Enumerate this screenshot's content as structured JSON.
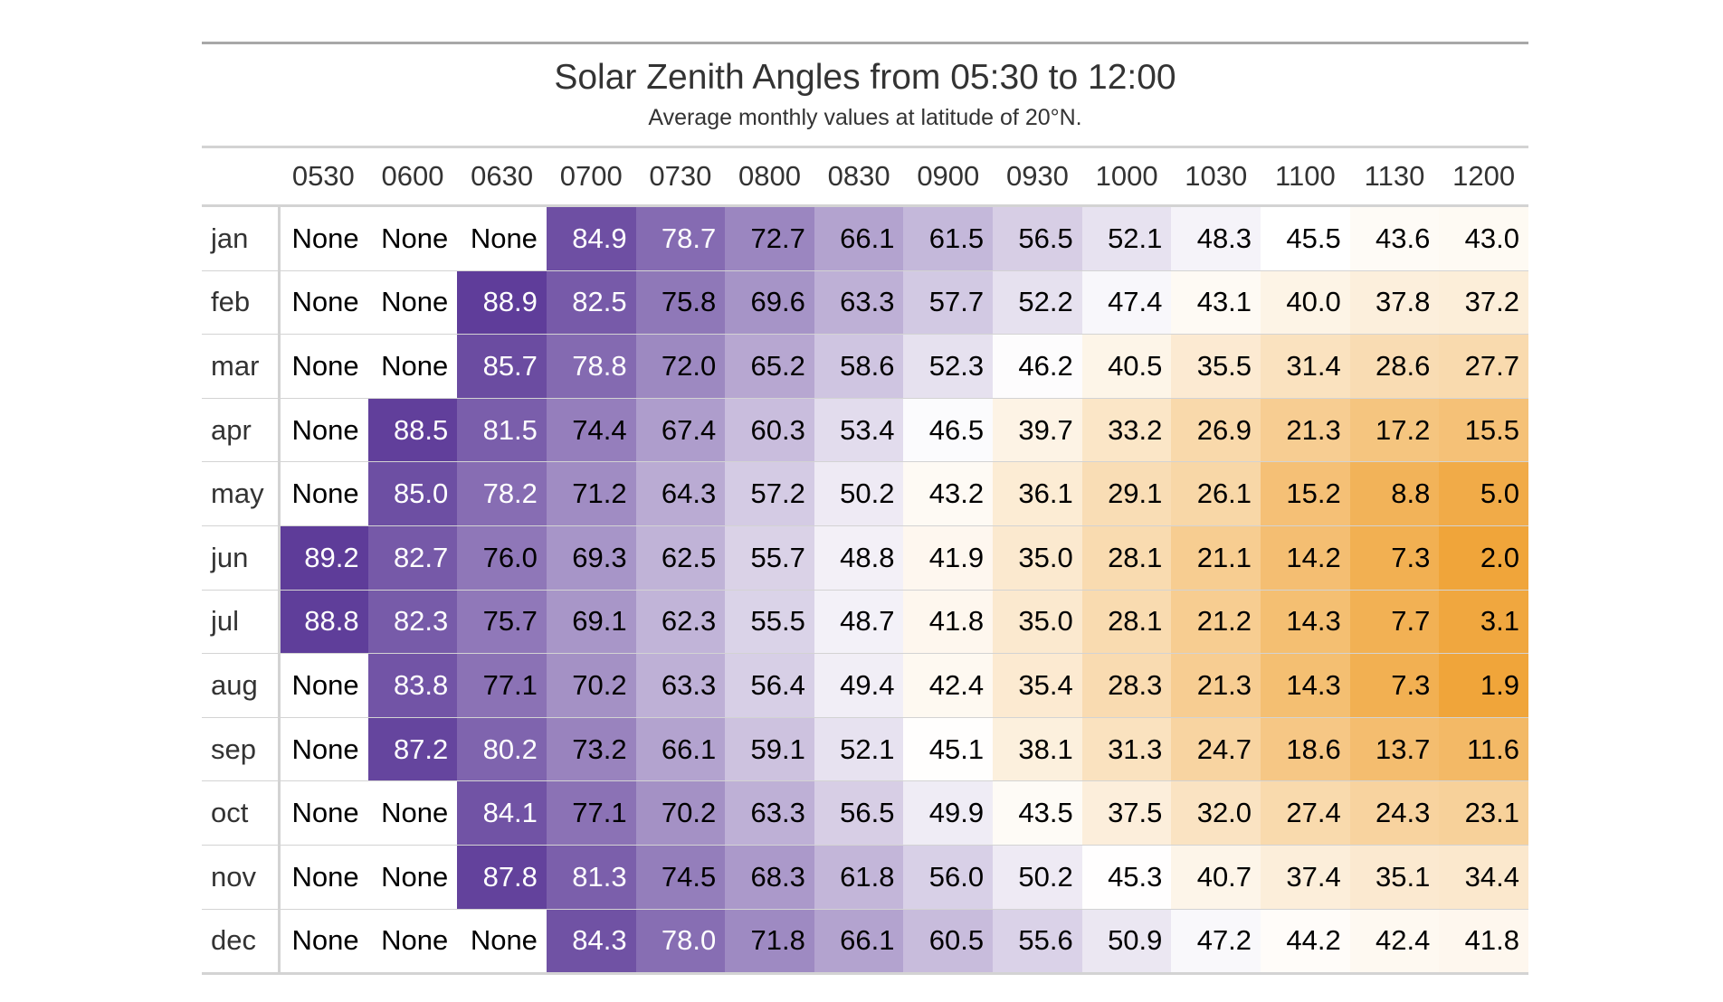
{
  "chart_data": {
    "type": "heatmap",
    "title": "Solar Zenith Angles from 05:30 to 12:00",
    "subtitle": "Average monthly values at latitude of 20°N.",
    "columns": [
      "0530",
      "0600",
      "0630",
      "0700",
      "0730",
      "0800",
      "0830",
      "0900",
      "0930",
      "1000",
      "1030",
      "1100",
      "1130",
      "1200"
    ],
    "rows": [
      "jan",
      "feb",
      "mar",
      "apr",
      "may",
      "jun",
      "jul",
      "aug",
      "sep",
      "oct",
      "nov",
      "dec"
    ],
    "values": [
      [
        null,
        null,
        null,
        84.9,
        78.7,
        72.7,
        66.1,
        61.5,
        56.5,
        52.1,
        48.3,
        45.5,
        43.6,
        43.0
      ],
      [
        null,
        null,
        88.9,
        82.5,
        75.8,
        69.6,
        63.3,
        57.7,
        52.2,
        47.4,
        43.1,
        40.0,
        37.8,
        37.2
      ],
      [
        null,
        null,
        85.7,
        78.8,
        72.0,
        65.2,
        58.6,
        52.3,
        46.2,
        40.5,
        35.5,
        31.4,
        28.6,
        27.7
      ],
      [
        null,
        88.5,
        81.5,
        74.4,
        67.4,
        60.3,
        53.4,
        46.5,
        39.7,
        33.2,
        26.9,
        21.3,
        17.2,
        15.5
      ],
      [
        null,
        85.0,
        78.2,
        71.2,
        64.3,
        57.2,
        50.2,
        43.2,
        36.1,
        29.1,
        26.1,
        15.2,
        8.8,
        5.0
      ],
      [
        89.2,
        82.7,
        76.0,
        69.3,
        62.5,
        55.7,
        48.8,
        41.9,
        35.0,
        28.1,
        21.1,
        14.2,
        7.3,
        2.0
      ],
      [
        88.8,
        82.3,
        75.7,
        69.1,
        62.3,
        55.5,
        48.7,
        41.8,
        35.0,
        28.1,
        21.2,
        14.3,
        7.7,
        3.1
      ],
      [
        null,
        83.8,
        77.1,
        70.2,
        63.3,
        56.4,
        49.4,
        42.4,
        35.4,
        28.3,
        21.3,
        14.3,
        7.3,
        1.9
      ],
      [
        null,
        87.2,
        80.2,
        73.2,
        66.1,
        59.1,
        52.1,
        45.1,
        38.1,
        31.3,
        24.7,
        18.6,
        13.7,
        11.6
      ],
      [
        null,
        null,
        84.1,
        77.1,
        70.2,
        63.3,
        56.5,
        49.9,
        43.5,
        37.5,
        32.0,
        27.4,
        24.3,
        23.1
      ],
      [
        null,
        null,
        87.8,
        81.3,
        74.5,
        68.3,
        61.8,
        56.0,
        50.2,
        45.3,
        40.7,
        37.4,
        35.1,
        34.4
      ],
      [
        null,
        null,
        null,
        84.3,
        78.0,
        71.8,
        66.1,
        60.5,
        55.6,
        50.9,
        47.2,
        44.2,
        42.4,
        41.8
      ]
    ],
    "missing_label": "None",
    "color_scale": {
      "low": "#f0a53a",
      "mid": "#ffffff",
      "high": "#5e3c99",
      "domain": [
        1.9,
        89.2
      ]
    }
  }
}
